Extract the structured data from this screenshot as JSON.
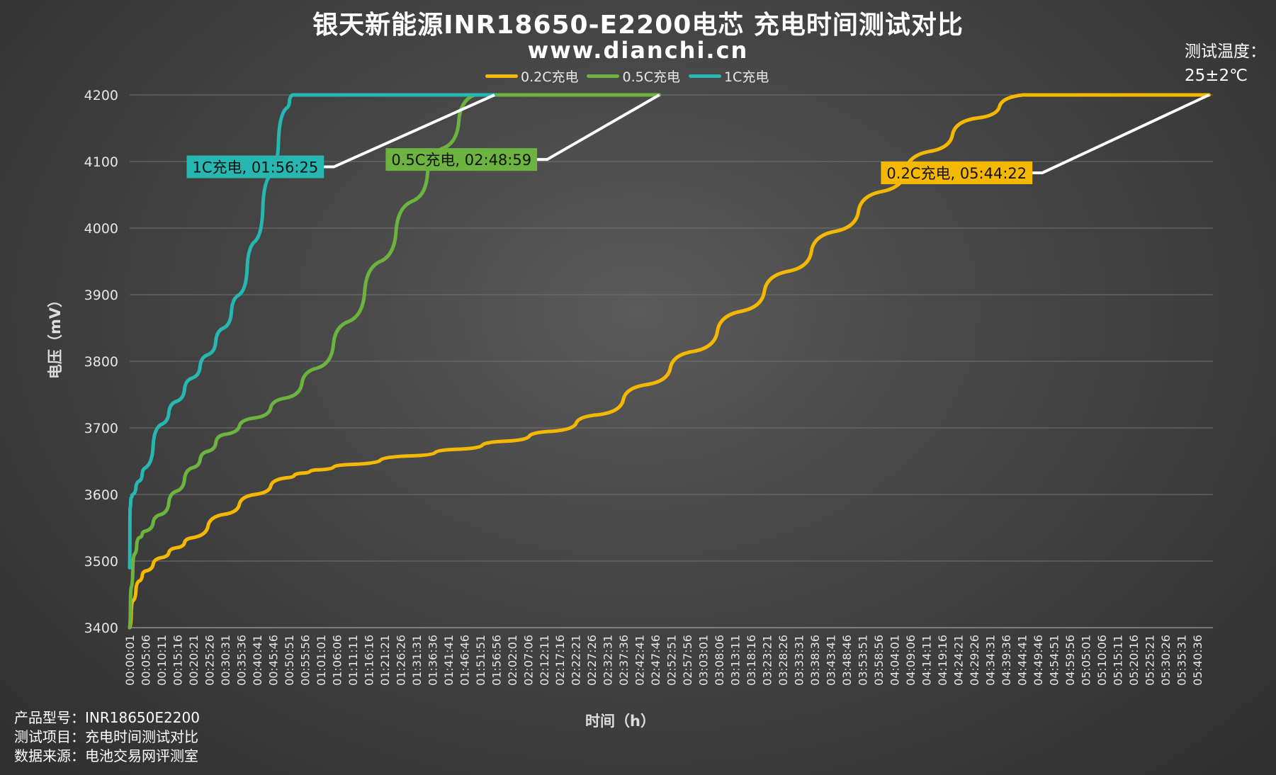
{
  "title": "银天新能源INR18650-E2200电芯 充电时间测试对比",
  "subtitle": "www.dianchi.cn",
  "temperature": {
    "label": "测试温度：",
    "value": "25±2℃"
  },
  "footer": {
    "line1": "产品型号：INR18650E2200",
    "line2": "测试项目：充电时间测试对比",
    "line3": "数据来源：电池交易网评测室"
  },
  "colors": {
    "0.2C": "#f5b800",
    "0.5C": "#6db33f",
    "1C": "#26b7b0"
  },
  "chart_data": {
    "type": "line",
    "title": "银天新能源INR18650-E2200电芯 充电时间测试对比",
    "xlabel": "时间（h）",
    "ylabel": "电压（mV）",
    "ylim": [
      3400,
      4200
    ],
    "yticks": [
      3400,
      3500,
      3600,
      3700,
      3800,
      3900,
      4000,
      4100,
      4200
    ],
    "xlim_seconds": [
      1,
      20736
    ],
    "xtick_labels": [
      "00:00:01",
      "00:05:06",
      "00:10:11",
      "00:15:16",
      "00:20:21",
      "00:25:26",
      "00:30:31",
      "00:35:36",
      "00:40:41",
      "00:45:46",
      "00:50:51",
      "00:55:56",
      "01:01:01",
      "01:06:06",
      "01:11:11",
      "01:16:16",
      "01:21:21",
      "01:26:26",
      "01:31:31",
      "01:36:36",
      "01:41:41",
      "01:46:46",
      "01:51:51",
      "01:56:56",
      "02:02:01",
      "02:07:06",
      "02:12:11",
      "02:17:16",
      "02:22:21",
      "02:27:26",
      "02:32:31",
      "02:37:36",
      "02:42:41",
      "02:47:46",
      "02:52:51",
      "02:57:56",
      "03:03:01",
      "03:08:06",
      "03:13:11",
      "03:18:16",
      "03:23:21",
      "03:28:26",
      "03:33:31",
      "03:38:36",
      "03:43:41",
      "03:48:46",
      "03:53:51",
      "03:58:56",
      "04:04:01",
      "04:09:06",
      "04:14:11",
      "04:19:16",
      "04:24:21",
      "04:29:26",
      "04:34:31",
      "04:39:36",
      "04:44:41",
      "04:49:46",
      "04:54:51",
      "04:59:56",
      "05:05:01",
      "05:10:06",
      "05:15:11",
      "05:20:16",
      "05:25:21",
      "05:30:26",
      "05:35:31",
      "05:40:36"
    ],
    "grid": true,
    "legend_position": "top",
    "series": [
      {
        "name": "0.2C充电",
        "key": "0.2C",
        "x": [
          "00:00:01",
          "00:01:00",
          "00:03:00",
          "00:05:00",
          "00:10:00",
          "00:15:00",
          "00:20:00",
          "00:30:00",
          "00:40:00",
          "00:50:00",
          "00:55:00",
          "01:00:00",
          "01:10:00",
          "01:30:00",
          "01:45:00",
          "02:00:00",
          "02:15:00",
          "02:30:00",
          "02:45:00",
          "03:00:00",
          "03:15:00",
          "03:30:00",
          "03:45:00",
          "04:00:00",
          "04:15:00",
          "04:30:00",
          "04:45:00",
          "04:55:00",
          "05:44:22"
        ],
        "y": [
          3400,
          3440,
          3470,
          3485,
          3505,
          3520,
          3535,
          3570,
          3600,
          3625,
          3632,
          3637,
          3645,
          3658,
          3668,
          3680,
          3695,
          3720,
          3765,
          3815,
          3875,
          3935,
          3995,
          4055,
          4115,
          4165,
          4200,
          4200,
          4200
        ]
      },
      {
        "name": "0.5C充电",
        "key": "0.5C",
        "x": [
          "00:00:01",
          "00:00:30",
          "00:01:30",
          "00:03:00",
          "00:05:00",
          "00:10:00",
          "00:15:00",
          "00:20:00",
          "00:25:00",
          "00:30:00",
          "00:40:00",
          "00:50:00",
          "01:00:00",
          "01:10:00",
          "01:20:00",
          "01:30:00",
          "01:40:00",
          "01:50:00",
          "02:48:59"
        ],
        "y": [
          3400,
          3460,
          3510,
          3535,
          3545,
          3570,
          3605,
          3640,
          3665,
          3690,
          3715,
          3745,
          3790,
          3860,
          3950,
          4040,
          4120,
          4200,
          4200
        ]
      },
      {
        "name": "1C充电",
        "key": "1C",
        "x": [
          "00:00:01",
          "00:00:10",
          "00:00:30",
          "00:01:00",
          "00:03:00",
          "00:05:00",
          "00:10:00",
          "00:15:00",
          "00:20:00",
          "00:25:00",
          "00:30:00",
          "00:35:00",
          "00:40:00",
          "00:45:00",
          "00:50:00",
          "00:52:00",
          "01:56:25"
        ],
        "y": [
          3490,
          3580,
          3595,
          3600,
          3620,
          3640,
          3705,
          3740,
          3775,
          3810,
          3850,
          3900,
          3980,
          4080,
          4180,
          4200,
          4200
        ]
      }
    ],
    "annotations": [
      {
        "key": "1C",
        "text": "1C充电, 01:56:25",
        "end_time": "01:56:25",
        "end_value": 4200,
        "label_anchor_time": "01:02:00",
        "label_anchor_value": 4092
      },
      {
        "key": "0.5C",
        "text": "0.5C充电, 02:48:59",
        "end_time": "02:48:59",
        "end_value": 4200,
        "label_anchor_time": "02:10:00",
        "label_anchor_value": 4103
      },
      {
        "key": "0.2C",
        "text": "0.2C充电, 05:44:22",
        "end_time": "05:44:22",
        "end_value": 4200,
        "label_anchor_time": "04:48:00",
        "label_anchor_value": 4083
      }
    ]
  }
}
